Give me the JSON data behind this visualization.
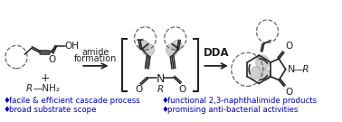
{
  "background_color": "#ffffff",
  "text_color": "#0000cc",
  "structure_color": "#222222",
  "highlight_color": "#b0b0b0",
  "dashed_circle_color": "#666666",
  "bracket_color": "#222222",
  "bullet_char": "♦",
  "bullets_left": [
    "facile & efficient cascade process",
    "broad substrate scope"
  ],
  "bullets_right": [
    "functional 2,3-naphthalimide products",
    "promising anti-bacterial activities"
  ],
  "label_amide": "amide\nformation",
  "label_dda": "DDA",
  "font_size_bullets": 6.2,
  "font_size_labels": 7.0,
  "fig_width": 3.78,
  "fig_height": 1.35,
  "dpi": 100
}
